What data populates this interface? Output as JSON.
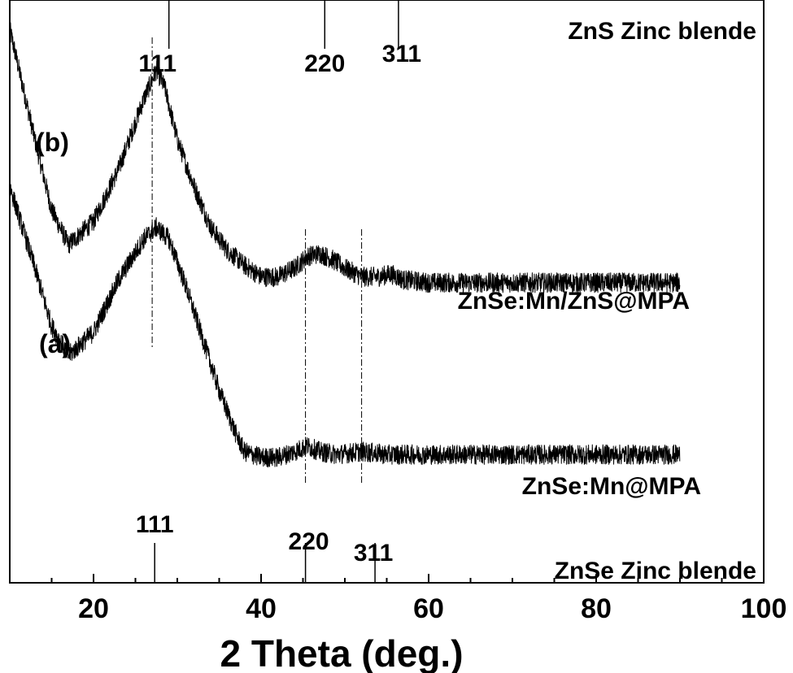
{
  "chart_data": {
    "type": "line",
    "title": "",
    "xlabel": "2 Theta (deg.)",
    "ylabel": "",
    "xlim": [
      10,
      100
    ],
    "x_ticks": [
      20,
      40,
      60,
      80,
      100
    ],
    "y_ticks_shown": false,
    "grid": false,
    "series": [
      {
        "name": "ZnSe:Mn/ZnS@MPA",
        "tag": "(b)",
        "x": [
          10,
          13,
          15,
          17,
          20,
          23,
          26,
          27.5,
          28.5,
          30,
          32,
          34,
          36,
          38,
          40,
          42,
          44,
          45.5,
          47,
          48.5,
          50,
          52,
          54,
          55.5,
          57,
          60,
          70,
          80,
          90
        ],
        "y": [
          0.95,
          0.76,
          0.64,
          0.58,
          0.62,
          0.71,
          0.83,
          0.88,
          0.85,
          0.76,
          0.68,
          0.61,
          0.57,
          0.545,
          0.525,
          0.525,
          0.54,
          0.56,
          0.565,
          0.555,
          0.54,
          0.525,
          0.525,
          0.53,
          0.52,
          0.515,
          0.515,
          0.515,
          0.515
        ]
      },
      {
        "name": "ZnSe:Mn@MPA",
        "tag": "(a)",
        "x": [
          10,
          13,
          15,
          17,
          20,
          23,
          26,
          27.5,
          29,
          31,
          33,
          35,
          37,
          38,
          40,
          42,
          44,
          45.5,
          47,
          49,
          52,
          55,
          60,
          70,
          80,
          90
        ],
        "y": [
          0.68,
          0.54,
          0.44,
          0.39,
          0.43,
          0.52,
          0.59,
          0.61,
          0.59,
          0.51,
          0.42,
          0.33,
          0.255,
          0.225,
          0.215,
          0.215,
          0.225,
          0.235,
          0.225,
          0.22,
          0.225,
          0.22,
          0.22,
          0.22,
          0.22,
          0.22
        ]
      }
    ],
    "reference_patterns": [
      {
        "name": "ZnS Zinc blende",
        "peaks": [
          {
            "x": 29.0,
            "label": "111"
          },
          {
            "x": 47.6,
            "label": "220"
          },
          {
            "x": 56.4,
            "label": "311"
          }
        ]
      },
      {
        "name": "ZnSe Zinc blende",
        "peaks": [
          {
            "x": 27.3,
            "label": "111"
          },
          {
            "x": 45.3,
            "label": "220"
          },
          {
            "x": 53.6,
            "label": "311"
          }
        ]
      }
    ],
    "guide_lines_x": [
      27.0,
      45.3,
      52.0
    ]
  },
  "colors": {
    "line": "#000000",
    "background": "#ffffff"
  }
}
